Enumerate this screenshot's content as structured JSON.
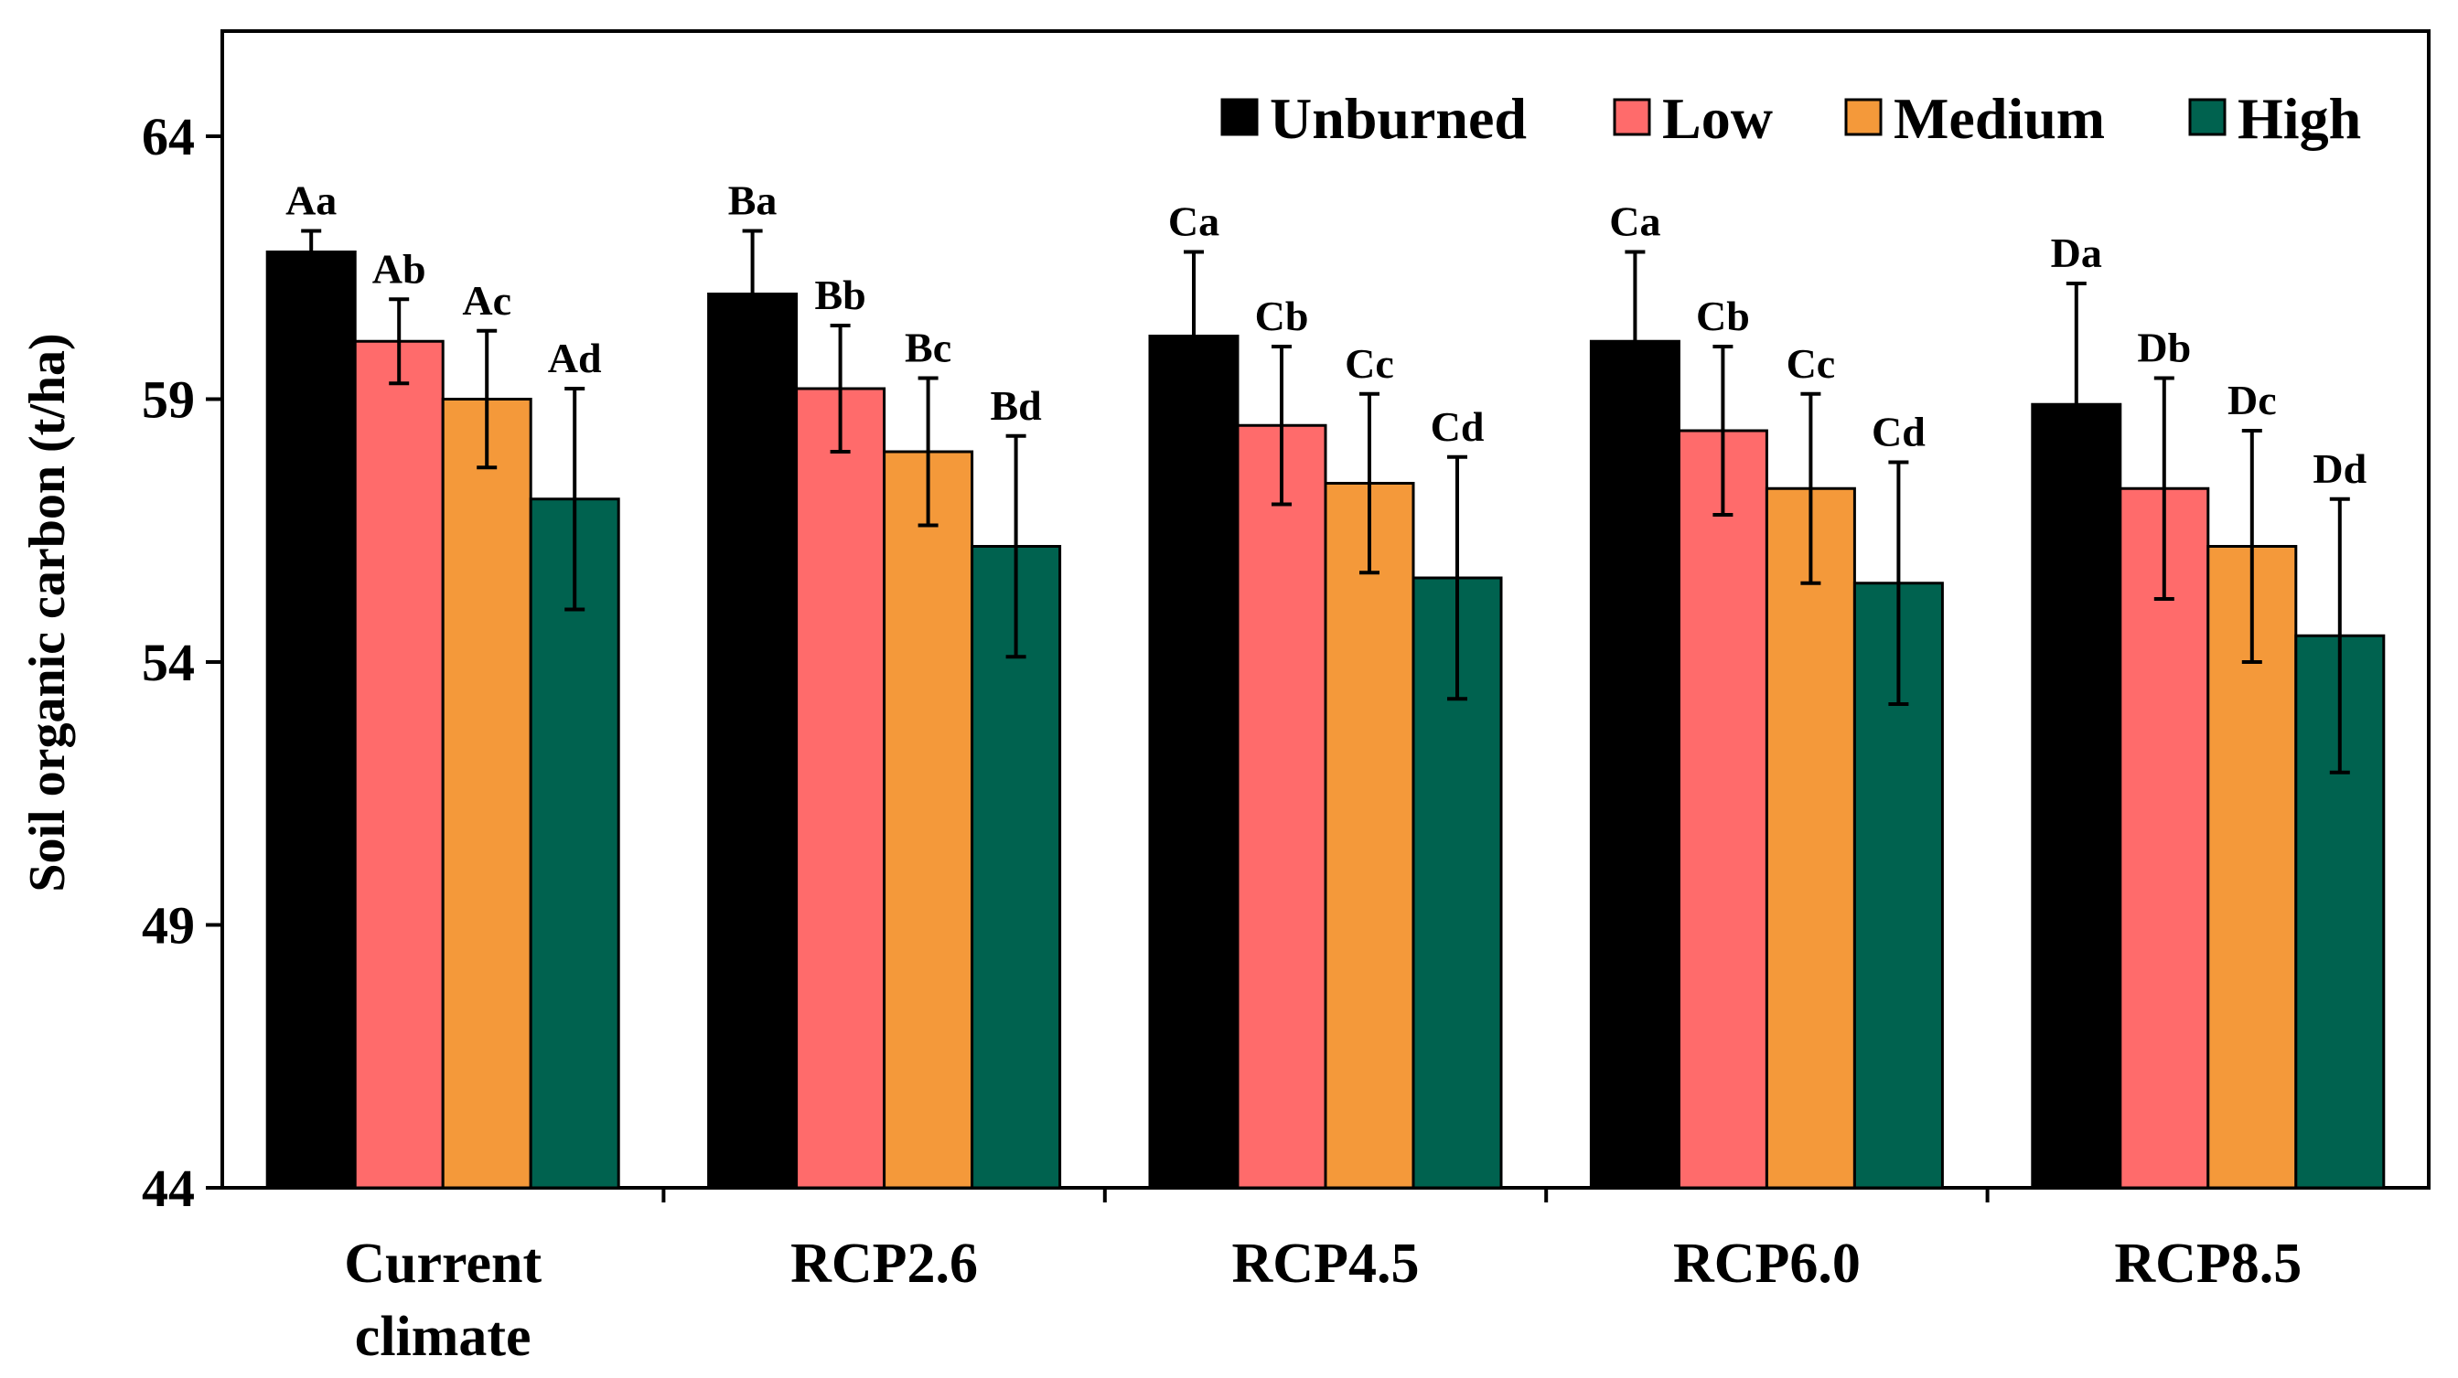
{
  "chart_data": {
    "type": "bar",
    "title": "",
    "xlabel": "",
    "ylabel": "Soil organic carbon (t/ha)",
    "ylim": [
      44,
      66
    ],
    "yticks": [
      "44",
      "49",
      "54",
      "59",
      "64"
    ],
    "ytick_values": [
      44,
      49,
      54,
      59,
      64
    ],
    "grid": false,
    "legend_position": "top-right",
    "categories": [
      [
        "Current",
        "climate"
      ],
      [
        "RCP2.6"
      ],
      [
        "RCP4.5"
      ],
      [
        "RCP6.0"
      ],
      [
        "RCP8.5"
      ]
    ],
    "series": [
      {
        "name": "Unburned",
        "color": "#000000",
        "values": [
          61.8,
          61.0,
          60.2,
          60.1,
          58.9
        ],
        "errors": [
          0.4,
          1.2,
          1.6,
          1.7,
          2.3
        ],
        "labels": [
          "Aa",
          "Ba",
          "Ca",
          "Ca",
          "Da"
        ]
      },
      {
        "name": "Low",
        "color": "#ff6b6b",
        "values": [
          60.1,
          59.2,
          58.5,
          58.4,
          57.3
        ],
        "errors": [
          0.8,
          1.2,
          1.5,
          1.6,
          2.1
        ],
        "labels": [
          "Ab",
          "Bb",
          "Cb",
          "Cb",
          "Db"
        ]
      },
      {
        "name": "Medium",
        "color": "#f4993a",
        "values": [
          59.0,
          58.0,
          57.4,
          57.3,
          56.2
        ],
        "errors": [
          1.3,
          1.4,
          1.7,
          1.8,
          2.2
        ],
        "labels": [
          "Ac",
          "Bc",
          "Cc",
          "Cc",
          "Dc"
        ]
      },
      {
        "name": "High",
        "color": "#00624f",
        "values": [
          57.1,
          56.2,
          55.6,
          55.5,
          54.5
        ],
        "errors": [
          2.1,
          2.1,
          2.3,
          2.3,
          2.6
        ],
        "labels": [
          "Ad",
          "Bd",
          "Cd",
          "Cd",
          "Dd"
        ]
      }
    ]
  }
}
